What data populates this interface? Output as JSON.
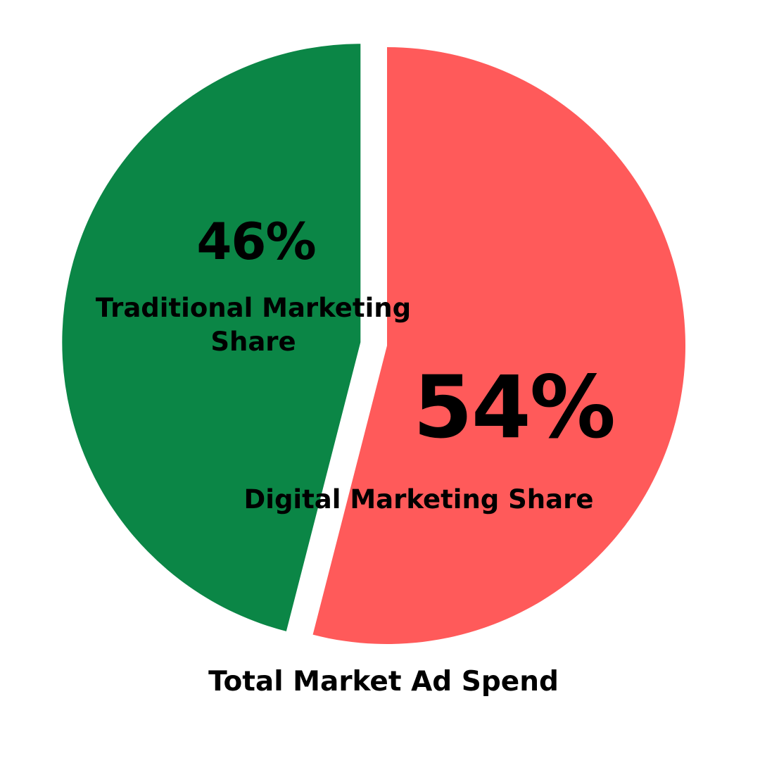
{
  "chart_data": {
    "type": "pie",
    "title": "Total Market Ad Spend",
    "slices": [
      {
        "label": "Digital Marketing Share",
        "value": 54,
        "display": "54%",
        "color": "#ff5a5a",
        "exploded": false
      },
      {
        "label": "Traditional Marketing Share",
        "value": 46,
        "display": "46%",
        "color": "#0b8646",
        "exploded": true
      }
    ]
  }
}
